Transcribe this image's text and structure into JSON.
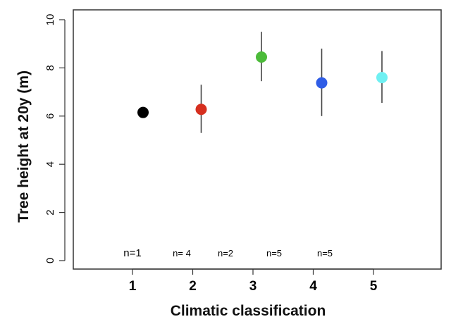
{
  "chart_data": {
    "type": "scatter",
    "xlabel": "Climatic classification",
    "ylabel": "Tree height at 20y (m)",
    "xlim": [
      0.3,
      6.0
    ],
    "ylim": [
      -0.2,
      10.3
    ],
    "x_ticks": [
      1,
      2,
      3,
      4,
      5
    ],
    "y_ticks": [
      0,
      2,
      4,
      6,
      8,
      10
    ],
    "grid": false,
    "points": [
      {
        "x": 1,
        "y": 6.15,
        "low": null,
        "high": null,
        "color": "#000000"
      },
      {
        "x": 2,
        "y": 6.28,
        "low": 5.3,
        "high": 7.3,
        "color": "#d62f1f"
      },
      {
        "x": 3,
        "y": 8.45,
        "low": 7.45,
        "high": 9.5,
        "color": "#4cbb3a"
      },
      {
        "x": 4,
        "y": 7.38,
        "low": 6.0,
        "high": 8.8,
        "color": "#2f5de6"
      },
      {
        "x": 5,
        "y": 7.6,
        "low": 6.55,
        "high": 8.7,
        "color": "#6ff0f2"
      }
    ],
    "annotations": [
      "n=1",
      "n= 4",
      "n=2",
      "n=5",
      "n=5"
    ]
  }
}
